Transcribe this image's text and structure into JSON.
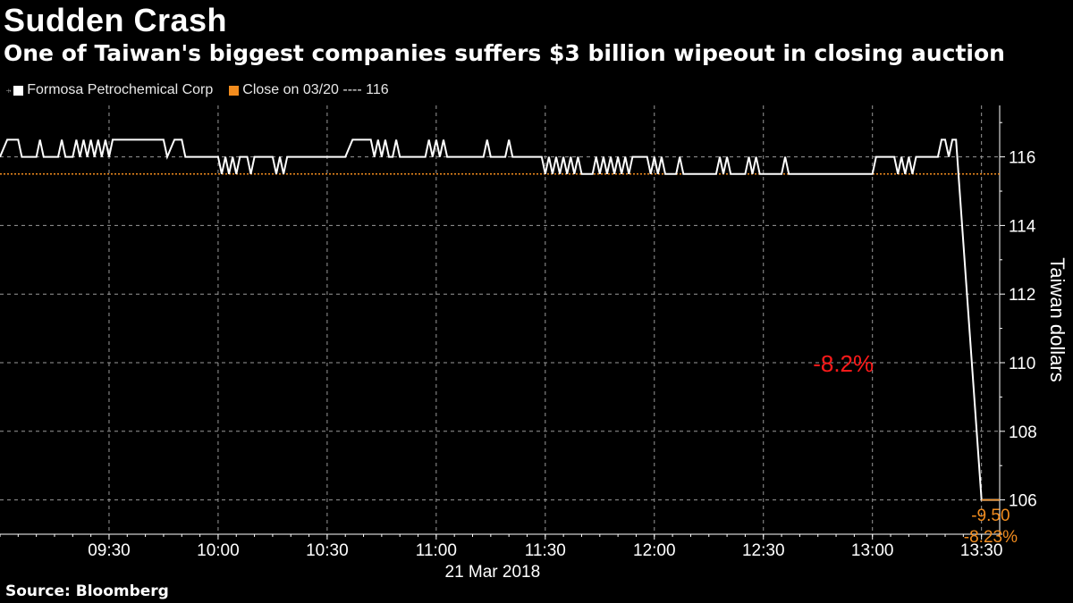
{
  "title": "Sudden Crash",
  "subtitle": "One of Taiwan's biggest companies suffers $3 billion wipeout in closing auction",
  "source": "Source: Bloomberg",
  "colors": {
    "price": "#ffffff",
    "close": "#f28c1e",
    "annotation": "#ff1a1a",
    "background": "#000000"
  },
  "chart_data": {
    "type": "line",
    "title": "Sudden Crash",
    "ylabel": "Taiwan dollars",
    "xlabel": "21 Mar 2018",
    "ylim": [
      105,
      117.5
    ],
    "xlim": [
      "09:00",
      "13:35"
    ],
    "y_ticks": [
      106,
      108,
      110,
      112,
      114,
      116
    ],
    "x_ticks": [
      "09:30",
      "10:00",
      "10:30",
      "11:00",
      "11:30",
      "12:00",
      "12:30",
      "13:00",
      "13:30"
    ],
    "grid": true,
    "legend": "top-left",
    "date_label": "21 Mar 2018",
    "series": [
      {
        "name": "Formosa Petrochemical Corp",
        "points": [
          [
            "09:00",
            116.0
          ],
          [
            "09:02",
            116.5
          ],
          [
            "09:05",
            116.5
          ],
          [
            "09:06",
            116.0
          ],
          [
            "09:10",
            116.0
          ],
          [
            "09:11",
            116.5
          ],
          [
            "09:12",
            116.0
          ],
          [
            "09:16",
            116.0
          ],
          [
            "09:17",
            116.5
          ],
          [
            "09:18",
            116.0
          ],
          [
            "09:20",
            116.0
          ],
          [
            "09:21",
            116.5
          ],
          [
            "09:22",
            116.0
          ],
          [
            "09:23",
            116.5
          ],
          [
            "09:24",
            116.0
          ],
          [
            "09:25",
            116.5
          ],
          [
            "09:26",
            116.0
          ],
          [
            "09:27",
            116.5
          ],
          [
            "09:28",
            116.0
          ],
          [
            "09:29",
            116.5
          ],
          [
            "09:30",
            116.0
          ],
          [
            "09:31",
            116.5
          ],
          [
            "09:45",
            116.5
          ],
          [
            "09:46",
            116.0
          ],
          [
            "09:48",
            116.5
          ],
          [
            "09:50",
            116.5
          ],
          [
            "09:51",
            116.0
          ],
          [
            "10:00",
            116.0
          ],
          [
            "10:01",
            115.5
          ],
          [
            "10:02",
            116.0
          ],
          [
            "10:03",
            115.5
          ],
          [
            "10:04",
            116.0
          ],
          [
            "10:05",
            115.5
          ],
          [
            "10:06",
            116.0
          ],
          [
            "10:08",
            116.0
          ],
          [
            "10:09",
            115.5
          ],
          [
            "10:10",
            116.0
          ],
          [
            "10:15",
            116.0
          ],
          [
            "10:16",
            115.5
          ],
          [
            "10:17",
            116.0
          ],
          [
            "10:18",
            115.5
          ],
          [
            "10:19",
            116.0
          ],
          [
            "10:35",
            116.0
          ],
          [
            "10:37",
            116.5
          ],
          [
            "10:42",
            116.5
          ],
          [
            "10:43",
            116.0
          ],
          [
            "10:44",
            116.5
          ],
          [
            "10:45",
            116.0
          ],
          [
            "10:46",
            116.5
          ],
          [
            "10:47",
            116.0
          ],
          [
            "10:48",
            116.0
          ],
          [
            "10:49",
            116.5
          ],
          [
            "10:50",
            116.0
          ],
          [
            "10:57",
            116.0
          ],
          [
            "10:58",
            116.5
          ],
          [
            "10:59",
            116.0
          ],
          [
            "11:00",
            116.5
          ],
          [
            "11:01",
            116.0
          ],
          [
            "11:02",
            116.5
          ],
          [
            "11:03",
            116.0
          ],
          [
            "11:13",
            116.0
          ],
          [
            "11:14",
            116.5
          ],
          [
            "11:15",
            116.0
          ],
          [
            "11:19",
            116.0
          ],
          [
            "11:20",
            116.5
          ],
          [
            "11:21",
            116.0
          ],
          [
            "11:29",
            116.0
          ],
          [
            "11:30",
            115.5
          ],
          [
            "11:31",
            116.0
          ],
          [
            "11:32",
            115.5
          ],
          [
            "11:33",
            116.0
          ],
          [
            "11:34",
            115.5
          ],
          [
            "11:35",
            116.0
          ],
          [
            "11:36",
            115.5
          ],
          [
            "11:37",
            116.0
          ],
          [
            "11:38",
            115.5
          ],
          [
            "11:39",
            116.0
          ],
          [
            "11:40",
            115.5
          ],
          [
            "11:43",
            115.5
          ],
          [
            "11:44",
            116.0
          ],
          [
            "11:45",
            115.5
          ],
          [
            "11:46",
            116.0
          ],
          [
            "11:47",
            115.5
          ],
          [
            "11:48",
            116.0
          ],
          [
            "11:49",
            115.5
          ],
          [
            "11:50",
            116.0
          ],
          [
            "11:51",
            115.5
          ],
          [
            "11:52",
            116.0
          ],
          [
            "11:53",
            115.5
          ],
          [
            "11:54",
            116.0
          ],
          [
            "11:58",
            116.0
          ],
          [
            "11:59",
            115.5
          ],
          [
            "12:00",
            116.0
          ],
          [
            "12:01",
            115.5
          ],
          [
            "12:02",
            116.0
          ],
          [
            "12:03",
            115.5
          ],
          [
            "12:06",
            115.5
          ],
          [
            "12:07",
            116.0
          ],
          [
            "12:08",
            115.5
          ],
          [
            "12:17",
            115.5
          ],
          [
            "12:18",
            116.0
          ],
          [
            "12:19",
            115.5
          ],
          [
            "12:20",
            116.0
          ],
          [
            "12:21",
            115.5
          ],
          [
            "12:25",
            115.5
          ],
          [
            "12:26",
            116.0
          ],
          [
            "12:27",
            115.5
          ],
          [
            "12:28",
            116.0
          ],
          [
            "12:29",
            115.5
          ],
          [
            "12:35",
            115.5
          ],
          [
            "12:36",
            116.0
          ],
          [
            "12:37",
            115.5
          ],
          [
            "13:00",
            115.5
          ],
          [
            "13:01",
            116.0
          ],
          [
            "13:06",
            116.0
          ],
          [
            "13:07",
            115.5
          ],
          [
            "13:08",
            116.0
          ],
          [
            "13:09",
            115.5
          ],
          [
            "13:10",
            116.0
          ],
          [
            "13:11",
            115.5
          ],
          [
            "13:12",
            116.0
          ],
          [
            "13:18",
            116.0
          ],
          [
            "13:19",
            116.5
          ],
          [
            "13:20",
            116.5
          ],
          [
            "13:21",
            116.0
          ],
          [
            "13:22",
            116.5
          ],
          [
            "13:23",
            116.5
          ],
          [
            "13:30",
            106.0
          ],
          [
            "13:35",
            106.0
          ]
        ]
      },
      {
        "name": "Close on 03/20 ---- 116",
        "reference_value": 115.5
      }
    ],
    "annotations": [
      {
        "text": "-8.2%",
        "x": "12:52",
        "y": 110.0
      },
      {
        "text": "-9.50",
        "x": "13:33",
        "y": 105.6
      },
      {
        "text": "-8.23%",
        "x": "13:33",
        "y": 105.0
      }
    ]
  }
}
